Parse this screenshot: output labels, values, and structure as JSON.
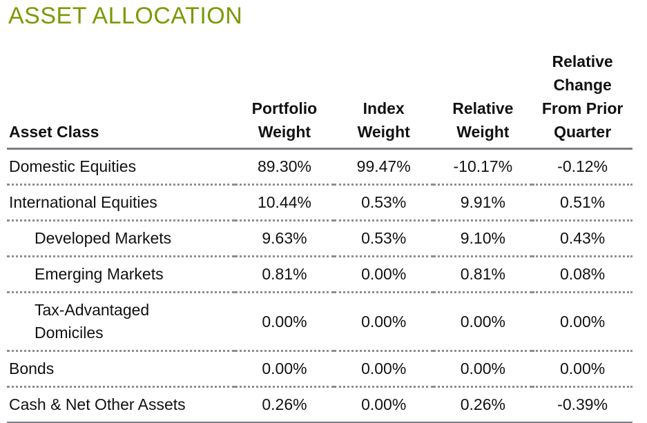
{
  "title": "ASSET ALLOCATION",
  "headers": [
    "Asset Class",
    "Portfolio Weight",
    "Index Weight",
    "Relative Weight",
    "Relative Change From Prior Quarter"
  ],
  "header_lines": [
    [
      "Asset Class"
    ],
    [
      "Portfolio",
      "Weight"
    ],
    [
      "Index",
      "Weight"
    ],
    [
      "Relative",
      "Weight"
    ],
    [
      "Relative",
      "Change",
      "From Prior",
      "Quarter"
    ]
  ],
  "rows": [
    {
      "asset_class": "Domestic Equities",
      "portfolio": "89.30%",
      "index": "99.47%",
      "relative": "-10.17%",
      "change": "-0.12%"
    },
    {
      "asset_class": "International Equities",
      "portfolio": "10.44%",
      "index": "0.53%",
      "relative": "9.91%",
      "change": "0.51%"
    },
    {
      "asset_class": "Developed Markets",
      "portfolio": "9.63%",
      "index": "0.53%",
      "relative": "9.10%",
      "change": "0.43%"
    },
    {
      "asset_class": "Emerging Markets",
      "portfolio": "0.81%",
      "index": "0.00%",
      "relative": "0.81%",
      "change": "0.08%"
    },
    {
      "asset_class": "Tax-Advantaged Domiciles",
      "portfolio": "0.00%",
      "index": "0.00%",
      "relative": "0.00%",
      "change": "0.00%"
    },
    {
      "asset_class": "Bonds",
      "portfolio": "0.00%",
      "index": "0.00%",
      "relative": "0.00%",
      "change": "0.00%"
    },
    {
      "asset_class": "Cash & Net Other Assets",
      "portfolio": "0.26%",
      "index": "0.00%",
      "relative": "0.26%",
      "change": "-0.39%"
    }
  ],
  "colors": {
    "title": "#7a9a01",
    "rule": "#7a7d82"
  }
}
